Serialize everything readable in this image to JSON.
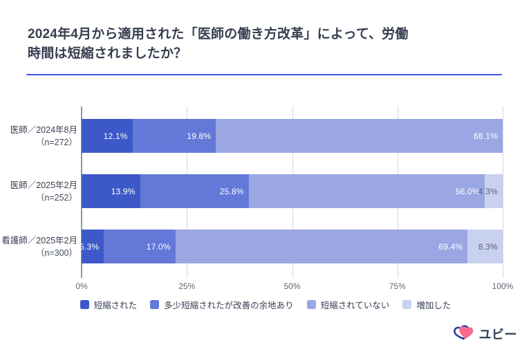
{
  "title": {
    "line1": "2024年4月から適用された「医師の働き方改革」によって、労働",
    "line2": "時間は短縮されましたか？",
    "underline_color": "#3f56d8"
  },
  "chart_data": {
    "type": "bar",
    "orientation": "horizontal",
    "stacked": true,
    "xlim": [
      0,
      100
    ],
    "x_ticks": [
      "0%",
      "25%",
      "50%",
      "75%",
      "100%"
    ],
    "grid": true,
    "legend_position": "bottom",
    "categories": [
      "医師／2024年8月",
      "医師／2025年2月",
      "看護師／2025年2月"
    ],
    "category_sublabels": [
      "（n=272）",
      "（n=252）",
      "（n=300）"
    ],
    "series": [
      {
        "name": "短縮された",
        "color": "#3d59c9",
        "label_color": "#ffffff",
        "values": [
          12.1,
          13.9,
          5.3
        ]
      },
      {
        "name": "多少短縮されたが改善の余地あり",
        "color": "#6478d8",
        "label_color": "#ffffff",
        "values": [
          19.8,
          25.8,
          17.0
        ]
      },
      {
        "name": "短縮されていない",
        "color": "#9ba7e3",
        "label_color": "#ffffff",
        "values": [
          68.1,
          56.0,
          69.4
        ]
      },
      {
        "name": "増加した",
        "color": "#c9d1f1",
        "label_color": "#5b6271",
        "values": [
          0,
          4.3,
          8.3
        ]
      }
    ],
    "value_suffix": "%"
  },
  "logo": {
    "text": "ユビー",
    "heart_pink": "#f9698c",
    "heart_blue": "#2b3c9e"
  }
}
